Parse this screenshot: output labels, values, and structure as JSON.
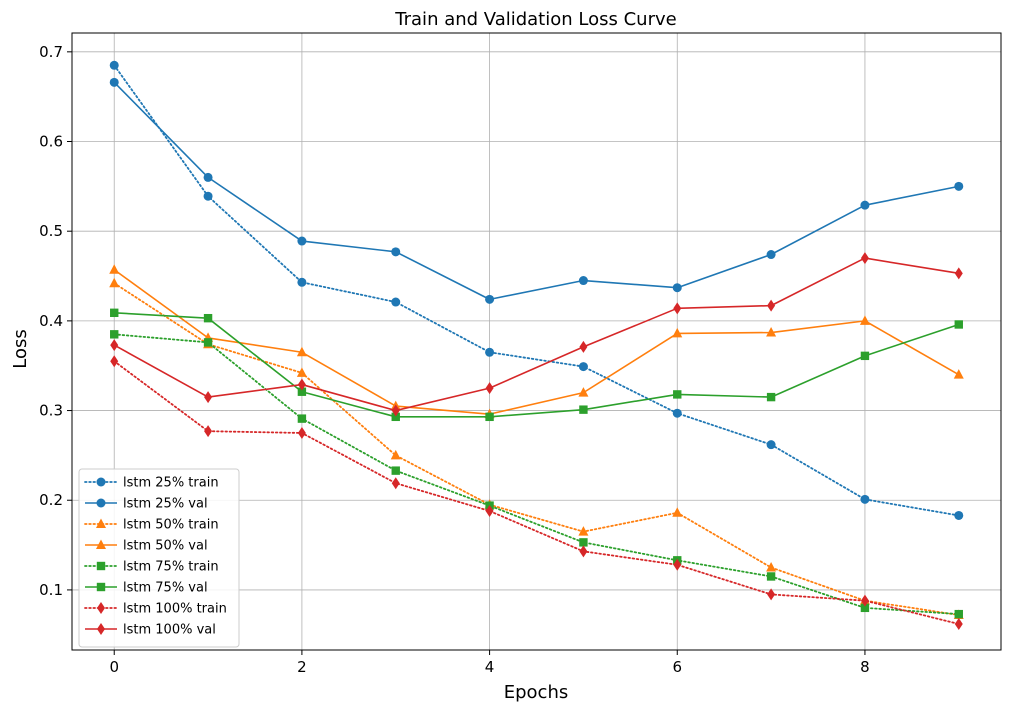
{
  "chart_data": {
    "type": "line",
    "title": "Train and Validation Loss Curve",
    "xlabel": "Epochs",
    "ylabel": "Loss",
    "xlim": [
      -0.45,
      9.45
    ],
    "ylim": [
      0.033,
      0.721
    ],
    "xticks": [
      0,
      2,
      4,
      6,
      8
    ],
    "yticks": [
      0.1,
      0.2,
      0.3,
      0.4,
      0.5,
      0.6,
      0.7
    ],
    "grid": true,
    "legend_position": "lower-left",
    "x": [
      0,
      1,
      2,
      3,
      4,
      5,
      6,
      7,
      8,
      9
    ],
    "series": [
      {
        "name": "lstm 25% train",
        "color": "#1f77b4",
        "style": "dotted",
        "marker": "circle",
        "values": [
          0.685,
          0.539,
          0.443,
          0.421,
          0.365,
          0.349,
          0.297,
          0.262,
          0.201,
          0.183
        ]
      },
      {
        "name": "lstm 25% val",
        "color": "#1f77b4",
        "style": "solid",
        "marker": "circle",
        "values": [
          0.666,
          0.56,
          0.489,
          0.477,
          0.424,
          0.445,
          0.437,
          0.474,
          0.529,
          0.55
        ]
      },
      {
        "name": "lstm 50% train",
        "color": "#ff7f0e",
        "style": "dotted",
        "marker": "triangle",
        "values": [
          0.442,
          0.374,
          0.342,
          0.25,
          0.195,
          0.165,
          0.186,
          0.125,
          0.088,
          0.072
        ]
      },
      {
        "name": "lstm 50% val",
        "color": "#ff7f0e",
        "style": "solid",
        "marker": "triangle",
        "values": [
          0.457,
          0.381,
          0.365,
          0.305,
          0.296,
          0.32,
          0.386,
          0.387,
          0.4,
          0.34
        ]
      },
      {
        "name": "lstm 75% train",
        "color": "#2ca02c",
        "style": "dotted",
        "marker": "square",
        "values": [
          0.385,
          0.376,
          0.291,
          0.233,
          0.194,
          0.153,
          0.133,
          0.115,
          0.08,
          0.073
        ]
      },
      {
        "name": "lstm 75% val",
        "color": "#2ca02c",
        "style": "solid",
        "marker": "square",
        "values": [
          0.409,
          0.403,
          0.321,
          0.293,
          0.293,
          0.301,
          0.318,
          0.315,
          0.361,
          0.396
        ]
      },
      {
        "name": "lstm 100% train",
        "color": "#d62728",
        "style": "dotted",
        "marker": "diamond",
        "values": [
          0.355,
          0.277,
          0.275,
          0.219,
          0.188,
          0.143,
          0.128,
          0.095,
          0.088,
          0.062
        ]
      },
      {
        "name": "lstm 100% val",
        "color": "#d62728",
        "style": "solid",
        "marker": "diamond",
        "values": [
          0.373,
          0.315,
          0.329,
          0.3,
          0.325,
          0.371,
          0.414,
          0.417,
          0.47,
          0.453
        ]
      }
    ]
  }
}
